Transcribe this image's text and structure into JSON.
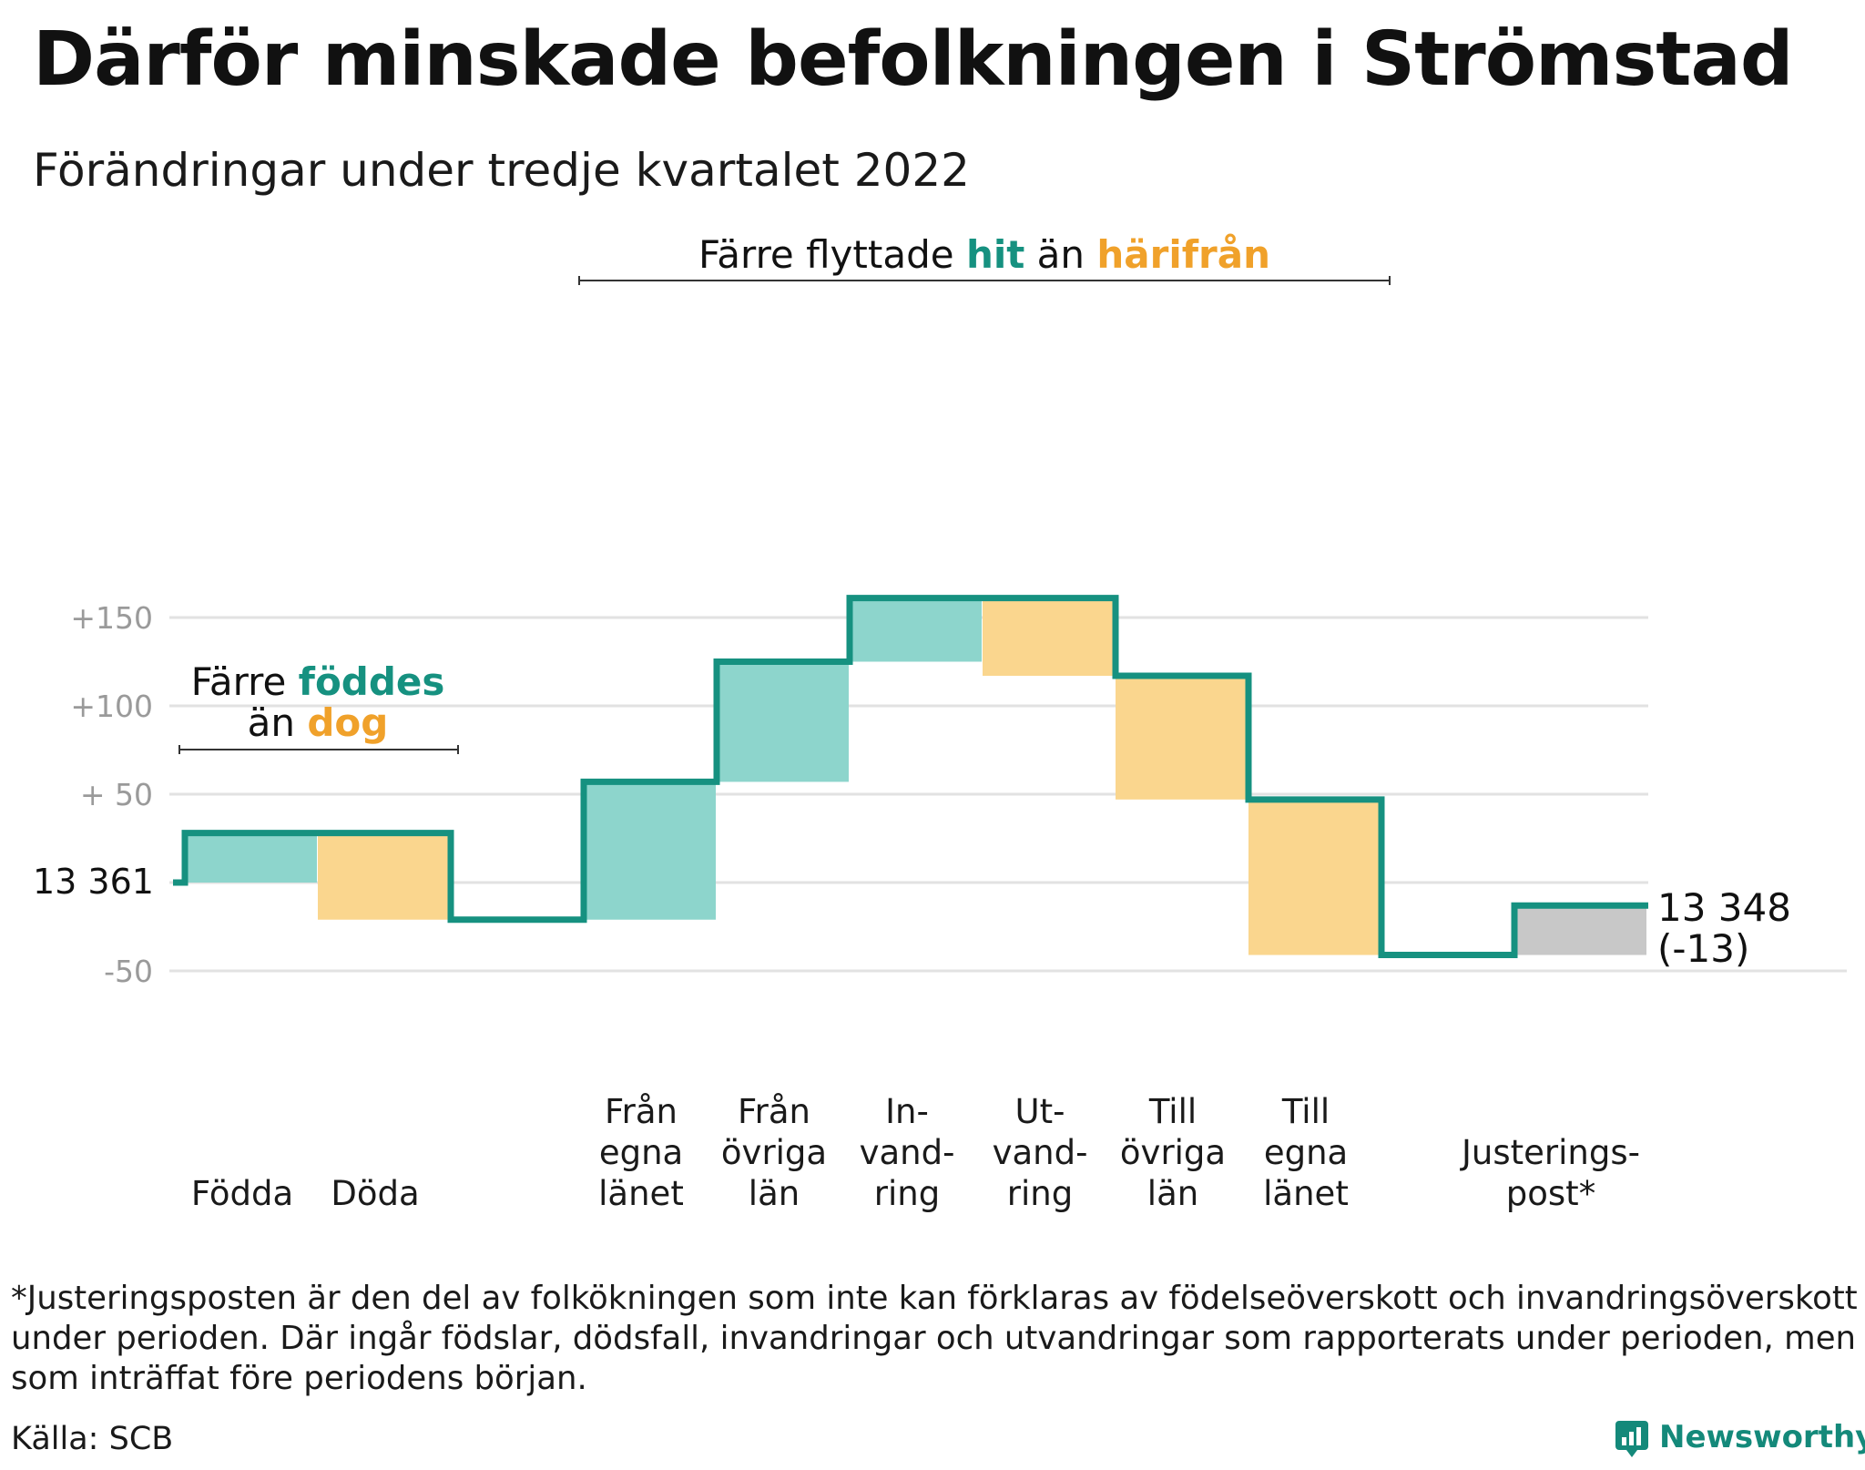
{
  "title": "Därför minskade befolkningen i Strömstad",
  "subtitle": "Förändringar under tredje kvartalet 2022",
  "colors": {
    "increase": "#8dd5cc",
    "decrease": "#fad68e",
    "adjustment": "#c8c8c8",
    "line": "#169180",
    "teal_text": "#169180",
    "orange_text": "#f0a12a",
    "grid": "#e2e2e2",
    "tick": "#9a9a9a"
  },
  "chart_data": {
    "type": "waterfall",
    "title": "Därför minskade befolkningen i Strömstad",
    "subtitle": "Förändringar under tredje kvartalet 2022",
    "start_label": "13 361",
    "start_value": 13361,
    "end_label": [
      "13 348",
      "(-13)"
    ],
    "end_value": 13348,
    "net_change": -13,
    "y_ticks": [
      {
        "value": 150,
        "label": "+150"
      },
      {
        "value": 100,
        "label": "+100"
      },
      {
        "value": 50,
        "label": "+ 50"
      },
      {
        "value": 0,
        "label": "13 361"
      },
      {
        "value": -50,
        "label": "-50"
      }
    ],
    "ylim": [
      -50,
      165
    ],
    "grid": true,
    "steps": [
      {
        "label": [
          "Födda"
        ],
        "value": 28,
        "type": "increase"
      },
      {
        "label": [
          "Döda"
        ],
        "value": -49,
        "type": "decrease"
      },
      {
        "label": [
          "Från",
          "egna",
          "länet"
        ],
        "value": 78,
        "type": "increase"
      },
      {
        "label": [
          "Från",
          "övriga",
          "län"
        ],
        "value": 68,
        "type": "increase"
      },
      {
        "label": [
          "In-",
          "vand-",
          "ring"
        ],
        "value": 36,
        "type": "increase"
      },
      {
        "label": [
          "Ut-",
          "vand-",
          "ring"
        ],
        "value": -44,
        "type": "decrease"
      },
      {
        "label": [
          "Till",
          "övriga",
          "län"
        ],
        "value": -70,
        "type": "decrease"
      },
      {
        "label": [
          "Till",
          "egna",
          "länet"
        ],
        "value": -88,
        "type": "decrease"
      },
      {
        "label": [
          "Justerings-",
          "post*"
        ],
        "value": 28,
        "type": "adjustment",
        "gap_before": true
      }
    ],
    "annotations": [
      {
        "id": "births",
        "segments": [
          {
            "text": "Färre ",
            "color": "default"
          },
          {
            "text": "föddes",
            "color": "teal"
          }
        ],
        "line2": [
          {
            "text": "än ",
            "color": "default"
          },
          {
            "text": "dog",
            "color": "orange"
          }
        ]
      },
      {
        "id": "migration",
        "segments": [
          {
            "text": "Färre flyttade ",
            "color": "default"
          },
          {
            "text": "hit",
            "color": "teal"
          },
          {
            "text": " än ",
            "color": "default"
          },
          {
            "text": "härifrån",
            "color": "orange"
          }
        ]
      }
    ]
  },
  "footnote": "*Justeringsposten är den del av folkökningen som inte kan förklaras av födelseöverskott och invandringsöverskott under perioden. Där ingår födslar, dödsfall, invandringar och utvandringar som rapporterats under perioden, men som inträffat före periodens början.",
  "source": "Källa: SCB",
  "brand": {
    "name": "Newsworthy",
    "icon": "newsworthy-logo-icon"
  }
}
